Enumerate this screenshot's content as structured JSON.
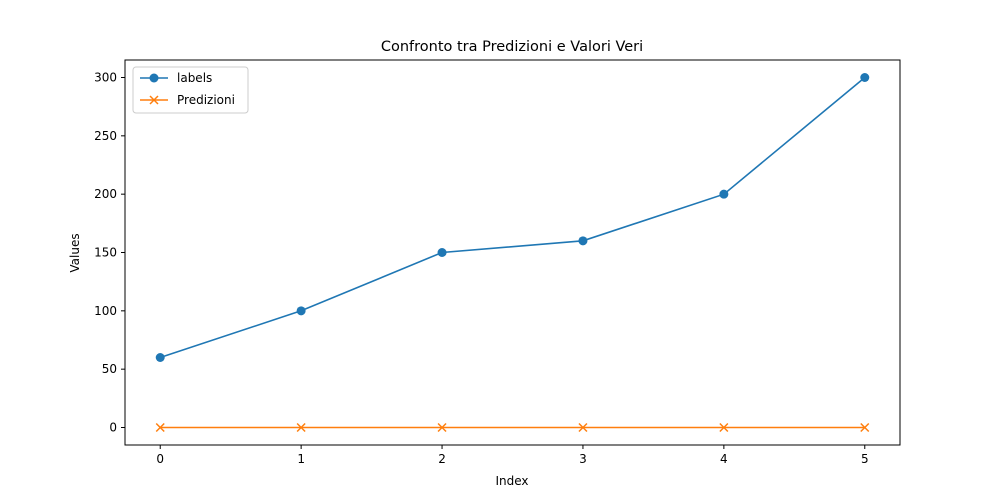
{
  "chart_data": {
    "type": "line",
    "title": "Confronto tra Predizioni e Valori Veri",
    "xlabel": "Index",
    "ylabel": "Values",
    "x": [
      0,
      1,
      2,
      3,
      4,
      5
    ],
    "xticks": [
      "0",
      "1",
      "2",
      "3",
      "4",
      "5"
    ],
    "yticks": [
      "0",
      "50",
      "100",
      "150",
      "200",
      "250",
      "300"
    ],
    "xlim": [
      -0.25,
      5.25
    ],
    "ylim": [
      -15,
      315
    ],
    "grid": false,
    "legend_position": "top-left",
    "series": [
      {
        "name": "labels",
        "values": [
          60,
          100,
          150,
          160,
          200,
          300
        ],
        "color": "#1f77b4",
        "marker": "circle"
      },
      {
        "name": "Predizioni",
        "values": [
          0,
          0,
          0,
          0,
          0,
          0
        ],
        "color": "#ff7f0e",
        "marker": "x"
      }
    ]
  }
}
